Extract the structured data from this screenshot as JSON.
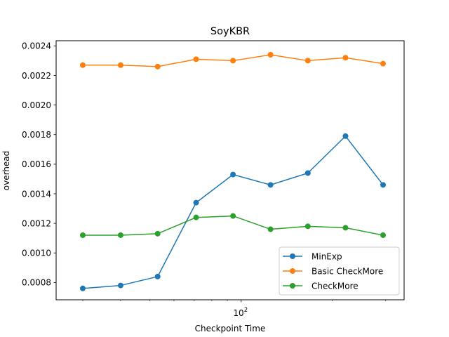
{
  "chart_data": {
    "type": "line",
    "title": "SoyKBR",
    "xlabel": "Checkpoint Time",
    "ylabel": "overhead",
    "xscale": "log",
    "x": [
      30,
      40,
      53,
      71,
      94,
      125,
      166,
      221,
      294
    ],
    "xlim": [
      24.5,
      345
    ],
    "xticks": [
      {
        "value": 100,
        "base": "10",
        "exp": "2"
      }
    ],
    "ylim": [
      0.000683,
      0.002435
    ],
    "yticks": [
      0.0008,
      0.001,
      0.0012,
      0.0014,
      0.0016,
      0.0018,
      0.002,
      0.0022,
      0.0024
    ],
    "ytick_labels": [
      "0.0008",
      "0.0010",
      "0.0012",
      "0.0014",
      "0.0016",
      "0.0018",
      "0.0020",
      "0.0022",
      "0.0024"
    ],
    "grid": false,
    "legend_position": "lower right",
    "series": [
      {
        "name": "MinExp",
        "color": "#1f77b4",
        "values": [
          0.00076,
          0.00078,
          0.00084,
          0.00134,
          0.00153,
          0.00146,
          0.00154,
          0.00179,
          0.00146
        ]
      },
      {
        "name": "Basic CheckMore",
        "color": "#ff7f0e",
        "values": [
          0.00227,
          0.00227,
          0.00226,
          0.00231,
          0.0023,
          0.00234,
          0.0023,
          0.00232,
          0.00228
        ]
      },
      {
        "name": "CheckMore",
        "color": "#2ca02c",
        "values": [
          0.00112,
          0.00112,
          0.00113,
          0.00124,
          0.00125,
          0.00116,
          0.00118,
          0.00117,
          0.00112
        ]
      }
    ]
  }
}
